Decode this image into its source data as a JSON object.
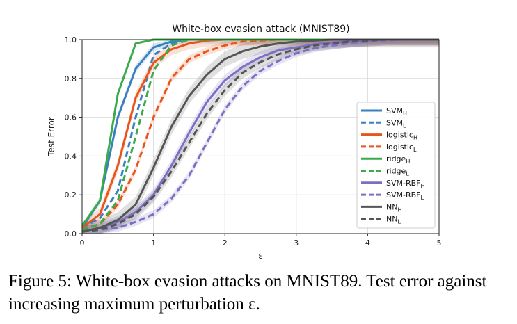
{
  "chart_data": {
    "type": "line",
    "title": "White-box evasion attack (MNIST89)",
    "xlabel": "ε",
    "ylabel": "Test Error",
    "xlim": [
      0,
      5
    ],
    "ylim": [
      0,
      1.0
    ],
    "xticks": [
      "0",
      "1",
      "2",
      "3",
      "4",
      "5"
    ],
    "yticks": [
      "0.0",
      "0.2",
      "0.4",
      "0.6",
      "0.8",
      "1.0"
    ],
    "grid": true,
    "legend_position": "lower-right",
    "x": [
      0,
      0.25,
      0.5,
      0.75,
      1.0,
      1.25,
      1.5,
      1.75,
      2.0,
      2.25,
      2.5,
      2.75,
      3.0,
      3.25,
      3.5,
      3.75,
      4.0,
      4.25,
      4.5,
      4.75,
      5.0
    ],
    "series": [
      {
        "name": "SVM",
        "sub": "H",
        "color": "#3a7fc1",
        "dash": "solid",
        "band": 0.02,
        "values": [
          0.03,
          0.17,
          0.6,
          0.85,
          0.96,
          0.99,
          1.0,
          1.0,
          1.0,
          1.0,
          1.0,
          1.0,
          1.0,
          1.0,
          1.0,
          1.0,
          1.0,
          1.0,
          1.0,
          1.0,
          1.0
        ]
      },
      {
        "name": "SVM",
        "sub": "L",
        "color": "#3a7fc1",
        "dash": "dashed",
        "band": 0.0,
        "values": [
          0.03,
          0.08,
          0.22,
          0.6,
          0.92,
          0.98,
          1.0,
          1.0,
          1.0,
          1.0,
          1.0,
          1.0,
          1.0,
          1.0,
          1.0,
          1.0,
          1.0,
          1.0,
          1.0,
          1.0,
          1.0
        ]
      },
      {
        "name": "logistic",
        "sub": "H",
        "color": "#e8541b",
        "dash": "solid",
        "band": 0.03,
        "values": [
          0.03,
          0.1,
          0.35,
          0.7,
          0.88,
          0.95,
          0.98,
          0.995,
          1.0,
          1.0,
          1.0,
          1.0,
          1.0,
          1.0,
          1.0,
          1.0,
          1.0,
          1.0,
          1.0,
          1.0,
          1.0
        ]
      },
      {
        "name": "logistic",
        "sub": "L",
        "color": "#e8541b",
        "dash": "dashed",
        "band": 0.02,
        "values": [
          0.02,
          0.05,
          0.15,
          0.33,
          0.6,
          0.8,
          0.9,
          0.94,
          0.97,
          0.99,
          0.995,
          1.0,
          1.0,
          1.0,
          1.0,
          1.0,
          1.0,
          1.0,
          1.0,
          1.0,
          1.0
        ]
      },
      {
        "name": "ridge",
        "sub": "H",
        "color": "#3aaa4a",
        "dash": "solid",
        "band": 0.0,
        "values": [
          0.04,
          0.17,
          0.72,
          0.98,
          1.0,
          1.0,
          1.0,
          1.0,
          1.0,
          1.0,
          1.0,
          1.0,
          1.0,
          1.0,
          1.0,
          1.0,
          1.0,
          1.0,
          1.0,
          1.0,
          1.0
        ]
      },
      {
        "name": "ridge",
        "sub": "L",
        "color": "#3aaa4a",
        "dash": "dashed",
        "band": 0.0,
        "values": [
          0.02,
          0.05,
          0.17,
          0.5,
          0.84,
          0.97,
          1.0,
          1.0,
          1.0,
          1.0,
          1.0,
          1.0,
          1.0,
          1.0,
          1.0,
          1.0,
          1.0,
          1.0,
          1.0,
          1.0,
          1.0
        ]
      },
      {
        "name": "SVM-RBF",
        "sub": "H",
        "color": "#7b6fc4",
        "dash": "solid",
        "band": 0.03,
        "values": [
          0.01,
          0.03,
          0.06,
          0.11,
          0.2,
          0.35,
          0.52,
          0.68,
          0.79,
          0.86,
          0.91,
          0.945,
          0.96,
          0.975,
          0.985,
          0.99,
          0.995,
          1.0,
          1.0,
          1.0,
          1.0
        ]
      },
      {
        "name": "SVM-RBF",
        "sub": "L",
        "color": "#7b6fc4",
        "dash": "dashed",
        "band": 0.02,
        "values": [
          0.01,
          0.02,
          0.03,
          0.06,
          0.1,
          0.18,
          0.3,
          0.47,
          0.64,
          0.76,
          0.84,
          0.89,
          0.93,
          0.955,
          0.97,
          0.98,
          0.99,
          0.995,
          1.0,
          1.0,
          1.0
        ]
      },
      {
        "name": "NN",
        "sub": "H",
        "color": "#555555",
        "dash": "solid",
        "band": 0.04,
        "values": [
          0.01,
          0.03,
          0.07,
          0.15,
          0.34,
          0.55,
          0.71,
          0.82,
          0.9,
          0.94,
          0.965,
          0.98,
          0.99,
          0.995,
          1.0,
          1.0,
          1.0,
          1.0,
          1.0,
          1.0,
          1.0
        ]
      },
      {
        "name": "NN",
        "sub": "L",
        "color": "#555555",
        "dash": "dashed",
        "band": 0.03,
        "values": [
          0.01,
          0.02,
          0.05,
          0.1,
          0.19,
          0.32,
          0.47,
          0.62,
          0.74,
          0.83,
          0.885,
          0.925,
          0.95,
          0.97,
          0.98,
          0.99,
          0.995,
          1.0,
          1.0,
          1.0,
          1.0
        ]
      }
    ]
  },
  "caption": {
    "text": "Figure 5: White-box evasion attacks on MNIST89. Test error against increasing maximum perturbation ε."
  }
}
